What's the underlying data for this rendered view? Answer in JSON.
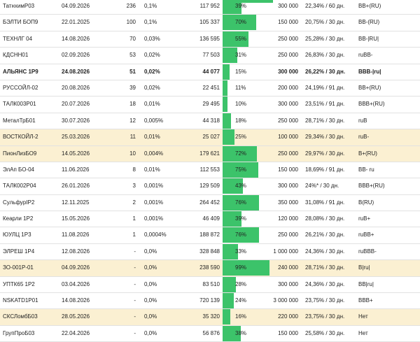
{
  "rows": [
    {
      "name": "ТатнхимР03",
      "date": "04.09.2026",
      "qty": "236",
      "pct": "0,1%",
      "vol": "117 952",
      "share_label": "39%",
      "share": 0.39,
      "nom": "300 000",
      "yield": "22,34% / 60 дн.",
      "rating": "BB+(RU)",
      "hl": false,
      "bold": false
    },
    {
      "name": "БЭЛТИ БОП9",
      "date": "22.01.2025",
      "qty": "100",
      "pct": "0,1%",
      "vol": "105 337",
      "share_label": "70%",
      "share": 0.7,
      "nom": "150 000",
      "yield": "20,75% / 30 дн.",
      "rating": "BB-(RU)",
      "hl": false,
      "bold": false
    },
    {
      "name": "ТЕХНЛГ 04",
      "date": "14.08.2026",
      "qty": "70",
      "pct": "0,03%",
      "vol": "136 595",
      "share_label": "55%",
      "share": 0.55,
      "nom": "250 000",
      "yield": "25,28% / 30 дн.",
      "rating": "BB-|RU|",
      "hl": false,
      "bold": false
    },
    {
      "name": "КДСНН01",
      "date": "02.09.2026",
      "qty": "53",
      "pct": "0,02%",
      "vol": "77 503",
      "share_label": "31%",
      "share": 0.31,
      "nom": "250 000",
      "yield": "26,83% / 30 дн.",
      "rating": "ruBB-",
      "hl": false,
      "bold": false
    },
    {
      "name": "АЛЬЯНС 1Р9",
      "date": "24.08.2026",
      "qty": "51",
      "pct": "0,02%",
      "vol": "44 077",
      "share_label": "15%",
      "share": 0.15,
      "nom": "300 000",
      "yield": "26,22% / 30 дн.",
      "rating": "BBB-|ru|",
      "hl": false,
      "bold": true
    },
    {
      "name": "РУССОЙЛ-02",
      "date": "20.08.2026",
      "qty": "39",
      "pct": "0,02%",
      "vol": "22 451",
      "share_label": "11%",
      "share": 0.11,
      "nom": "200 000",
      "yield": "24,19% / 91 дн.",
      "rating": "BB+(RU)",
      "hl": false,
      "bold": false
    },
    {
      "name": "ТАЛК003Р01",
      "date": "20.07.2026",
      "qty": "18",
      "pct": "0,01%",
      "vol": "29 495",
      "share_label": "10%",
      "share": 0.1,
      "nom": "300 000",
      "yield": "23,51% / 91 дн.",
      "rating": "BBB+(RU)",
      "hl": false,
      "bold": false
    },
    {
      "name": "МеталТрБ01",
      "date": "30.07.2026",
      "qty": "12",
      "pct": "0,005%",
      "vol": "44 318",
      "share_label": "18%",
      "share": 0.18,
      "nom": "250 000",
      "yield": "28,71% / 30 дн.",
      "rating": "ruB",
      "hl": false,
      "bold": false
    },
    {
      "name": "ВОСТКОЙЛ-2",
      "date": "25.03.2026",
      "qty": "11",
      "pct": "0,01%",
      "vol": "25 027",
      "share_label": "25%",
      "share": 0.25,
      "nom": "100 000",
      "yield": "29,34% / 30 дн.",
      "rating": "ruB-",
      "hl": true,
      "bold": false
    },
    {
      "name": "ПионЛизБО9",
      "date": "14.05.2026",
      "qty": "10",
      "pct": "0,004%",
      "vol": "179 621",
      "share_label": "72%",
      "share": 0.72,
      "nom": "250 000",
      "yield": "29,97% / 30 дн.",
      "rating": "B+(RU)",
      "hl": true,
      "bold": false
    },
    {
      "name": "ЭлАп БО-04",
      "date": "11.06.2026",
      "qty": "8",
      "pct": "0,01%",
      "vol": "112 553",
      "share_label": "75%",
      "share": 0.75,
      "nom": "150 000",
      "yield": "18,69% / 91 дн.",
      "rating": "BB- ru",
      "hl": false,
      "bold": false
    },
    {
      "name": "ТАЛК002Р04",
      "date": "26.01.2026",
      "qty": "3",
      "pct": "0,001%",
      "vol": "129 509",
      "share_label": "43%",
      "share": 0.43,
      "nom": "300 000",
      "yield": "24%* / 30 дн.",
      "rating": "BBB+(RU)",
      "hl": false,
      "bold": false
    },
    {
      "name": "СульфурІР2",
      "date": "12.11.2025",
      "qty": "2",
      "pct": "0,001%",
      "vol": "264 452",
      "share_label": "76%",
      "share": 0.76,
      "nom": "350 000",
      "yield": "31,08% / 91 дн.",
      "rating": "B(RU)",
      "hl": false,
      "bold": false
    },
    {
      "name": "Кеарли 1Р2",
      "date": "15.05.2026",
      "qty": "1",
      "pct": "0,001%",
      "vol": "46 409",
      "share_label": "39%",
      "share": 0.39,
      "nom": "120 000",
      "yield": "28,08% / 30 дн.",
      "rating": "ruB+",
      "hl": false,
      "bold": false
    },
    {
      "name": "ЮУЛЦ 1Р3",
      "date": "11.08.2026",
      "qty": "1",
      "pct": "0,0004%",
      "vol": "188 872",
      "share_label": "76%",
      "share": 0.76,
      "nom": "250 000",
      "yield": "26,21% / 30 дн.",
      "rating": "ruBB+",
      "hl": false,
      "bold": false
    },
    {
      "name": "ЭЛРЕШ 1Р4",
      "date": "12.08.2026",
      "qty": "-",
      "pct": "0,0%",
      "vol": "328 848",
      "share_label": "33%",
      "share": 0.33,
      "nom": "1 000 000",
      "yield": "24,36% / 30 дн.",
      "rating": "ruBBB-",
      "hl": false,
      "bold": false
    },
    {
      "name": "ЗО-001Р-01",
      "date": "04.09.2026",
      "qty": "-",
      "pct": "0,0%",
      "vol": "238 590",
      "share_label": "99%",
      "share": 0.99,
      "nom": "240 000",
      "yield": "28,71% / 30 дн.",
      "rating": "B|ru|",
      "hl": true,
      "bold": false
    },
    {
      "name": "УПТК65 1Р2",
      "date": "03.04.2026",
      "qty": "-",
      "pct": "0,0%",
      "vol": "83 510",
      "share_label": "28%",
      "share": 0.28,
      "nom": "300 000",
      "yield": "24,36% / 30 дн.",
      "rating": "BB|ru|",
      "hl": false,
      "bold": false
    },
    {
      "name": "NSKATD1P01",
      "date": "14.08.2026",
      "qty": "-",
      "pct": "0,0%",
      "vol": "720 139",
      "share_label": "24%",
      "share": 0.24,
      "nom": "3 000 000",
      "yield": "23,75% / 30 дн.",
      "rating": "BBB+",
      "hl": false,
      "bold": false
    },
    {
      "name": "СКСЛомбБ03",
      "date": "28.05.2026",
      "qty": "-",
      "pct": "0,0%",
      "vol": "35 320",
      "share_label": "16%",
      "share": 0.16,
      "nom": "220 000",
      "yield": "23,75% / 30 дн.",
      "rating": "Нет",
      "hl": true,
      "bold": false
    },
    {
      "name": "ГрупПроБ03",
      "date": "22.04.2026",
      "qty": "-",
      "pct": "0,0%",
      "vol": "56 876",
      "share_label": "38%",
      "share": 0.38,
      "nom": "150 000",
      "yield": "25,58% / 30 дн.",
      "rating": "Нет",
      "hl": false,
      "bold": false
    }
  ],
  "colors": {
    "bar": "#3cc36a",
    "highlight": "#fbf0d2"
  }
}
